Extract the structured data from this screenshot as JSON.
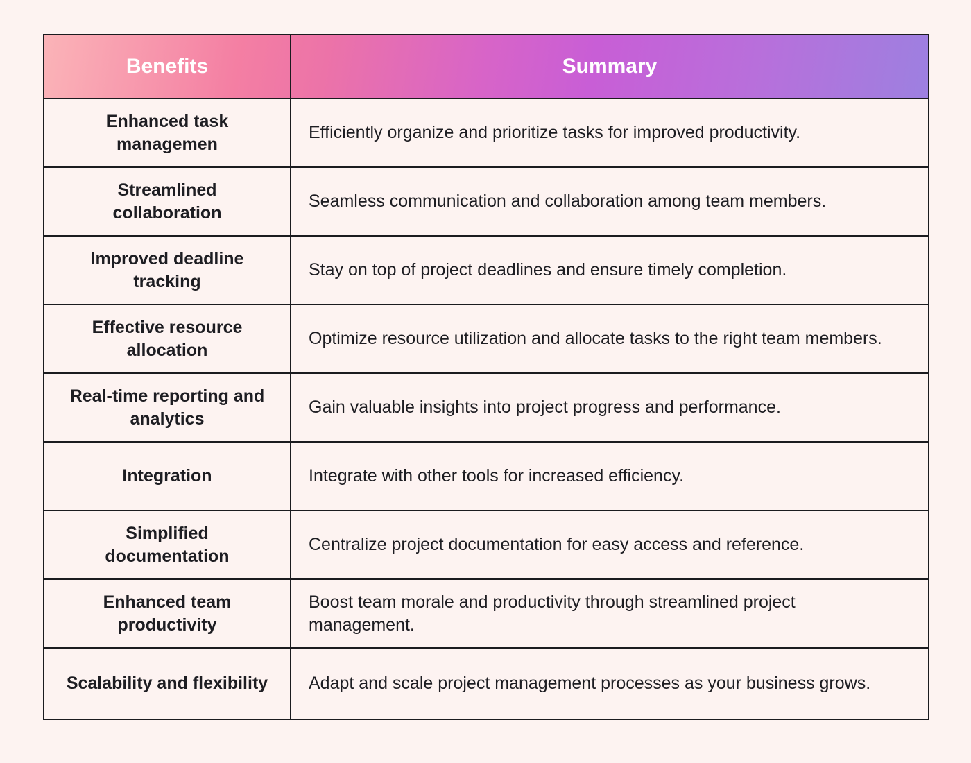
{
  "table": {
    "headers": {
      "benefits": "Benefits",
      "summary": "Summary"
    },
    "rows": [
      {
        "benefit": "Enhanced task managemen",
        "summary": "Efficiently organize and prioritize tasks for improved productivity."
      },
      {
        "benefit": "Streamlined collaboration",
        "summary": "Seamless communication and collaboration among team members."
      },
      {
        "benefit": "Improved deadline tracking",
        "summary": "Stay on top of project deadlines and ensure timely completion."
      },
      {
        "benefit": "Effective resource allocation",
        "summary": "Optimize resource utilization and allocate tasks to the right team members."
      },
      {
        "benefit": "Real-time reporting and analytics",
        "summary": "Gain valuable insights into project progress and performance."
      },
      {
        "benefit": "Integration",
        "summary": "Integrate with other tools for increased efficiency."
      },
      {
        "benefit": "Simplified documentation",
        "summary": "Centralize project documentation for easy access and reference."
      },
      {
        "benefit": "Enhanced team productivity",
        "summary": "Boost team morale and productivity through streamlined project management."
      },
      {
        "benefit": "Scalability and flexibility",
        "summary": "Adapt and scale project management processes as your business grows."
      }
    ]
  },
  "colors": {
    "background": "#fdf3f1",
    "border": "#1b1b1f",
    "header_gradient_start": "#fbb4b8",
    "header_gradient_mid": "#c85ed6",
    "header_gradient_end": "#9d80e0",
    "header_text": "#ffffff"
  }
}
